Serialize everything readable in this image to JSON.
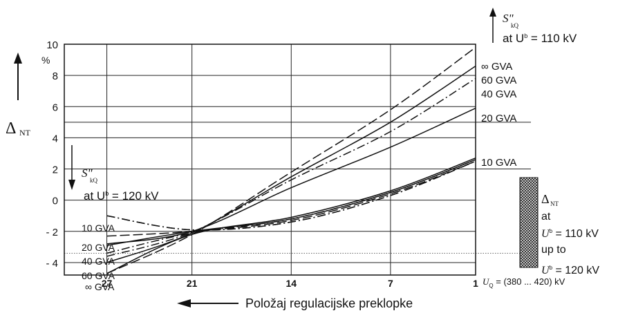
{
  "chart_data": {
    "type": "line",
    "ylabel_main": "Δ",
    "ylabel_sub": "NT",
    "yunit": "%",
    "xlabel": "Položaj regulacijske preklopke",
    "xlim": [
      30,
      1
    ],
    "ylim": [
      -4.8,
      10
    ],
    "yticks": [
      {
        "v": 10,
        "label": "10"
      },
      {
        "v": 8,
        "label": "8"
      },
      {
        "v": 6,
        "label": "6"
      },
      {
        "v": 4,
        "label": "4"
      },
      {
        "v": 2,
        "label": "2"
      },
      {
        "v": 0,
        "label": "0"
      },
      {
        "v": -2,
        "label": "- 2"
      },
      {
        "v": -4,
        "label": "- 4"
      }
    ],
    "xticks": [
      {
        "v": 27,
        "label": "27"
      },
      {
        "v": 21,
        "label": "21"
      },
      {
        "v": 14,
        "label": "14"
      },
      {
        "v": 7,
        "label": "7"
      },
      {
        "v": 1,
        "label": "1"
      }
    ],
    "grid": true,
    "ref_lines": [
      5,
      2,
      -3.4
    ],
    "series_upper": [
      {
        "name": "∞ GVA",
        "dash": "longdash",
        "x": [
          27,
          21,
          14,
          7,
          1
        ],
        "y": [
          -4.7,
          -2.2,
          1.8,
          5.8,
          9.8
        ]
      },
      {
        "name": "60 GVA",
        "dash": "solid",
        "x": [
          27,
          21,
          14,
          7,
          1
        ],
        "y": [
          -4.0,
          -2.1,
          1.5,
          5.0,
          8.6
        ]
      },
      {
        "name": "40 GVA",
        "dash": "dashdot",
        "x": [
          27,
          21,
          14,
          7,
          1
        ],
        "y": [
          -3.6,
          -2.05,
          1.3,
          4.4,
          7.8
        ]
      },
      {
        "name": "20 GVA",
        "dash": "solid",
        "x": [
          27,
          21,
          14,
          7,
          1
        ],
        "y": [
          -2.8,
          -2.0,
          0.8,
          3.4,
          5.9
        ]
      },
      {
        "name": "10 GVA",
        "dash": "dashdot",
        "x": [
          27,
          21,
          14,
          7,
          1
        ],
        "y": [
          -1.0,
          -1.9,
          -1.4,
          0.3,
          2.5
        ]
      }
    ],
    "series_lower": [
      {
        "name": "10 GVA",
        "dash": "dashdot",
        "x": [
          27,
          21,
          14,
          7,
          1
        ],
        "y": [
          -1.0,
          -1.9,
          -1.4,
          0.3,
          2.5
        ]
      },
      {
        "name": "20 GVA",
        "dash": "longdash",
        "x": [
          27,
          21,
          14,
          7,
          1
        ],
        "y": [
          -2.3,
          -2.0,
          -1.3,
          0.4,
          2.5
        ]
      },
      {
        "name": "40 GVA",
        "dash": "solid",
        "x": [
          27,
          21,
          14,
          7,
          1
        ],
        "y": [
          -2.9,
          -2.0,
          -1.2,
          0.5,
          2.6
        ]
      },
      {
        "name": "60 GVA",
        "dash": "dashdot",
        "x": [
          27,
          21,
          14,
          7,
          1
        ],
        "y": [
          -3.4,
          -2.1,
          -1.2,
          0.5,
          2.6
        ]
      },
      {
        "name": "∞ GVA",
        "dash": "solid",
        "x": [
          27,
          21,
          14,
          7,
          1
        ],
        "y": [
          -4.7,
          -2.2,
          -1.1,
          0.6,
          2.7
        ]
      }
    ],
    "annotations": {
      "top_s": "S\"",
      "top_s_sub": "kQ",
      "top_at": "at U",
      "top_at_sup": "b",
      "top_at_val": " = 110 kV",
      "left_s": "S\"",
      "left_s_sub": "kQ",
      "left_at": "at U",
      "left_at_sup": "b",
      "left_at_val": " = 120 kV",
      "band_delta": "Δ",
      "band_delta_sub": "NT",
      "band_at": "at",
      "band_u110": "U",
      "band_u110_sup": "b",
      "band_u110_val": " = 110 kV",
      "band_upto": "up to",
      "band_u120": "U",
      "band_u120_sup": "b",
      "band_u120_val": " = 120 kV",
      "uq_label": "U",
      "uq_sub": "Q",
      "uq_val": " = (380 ... 420) kV"
    }
  }
}
